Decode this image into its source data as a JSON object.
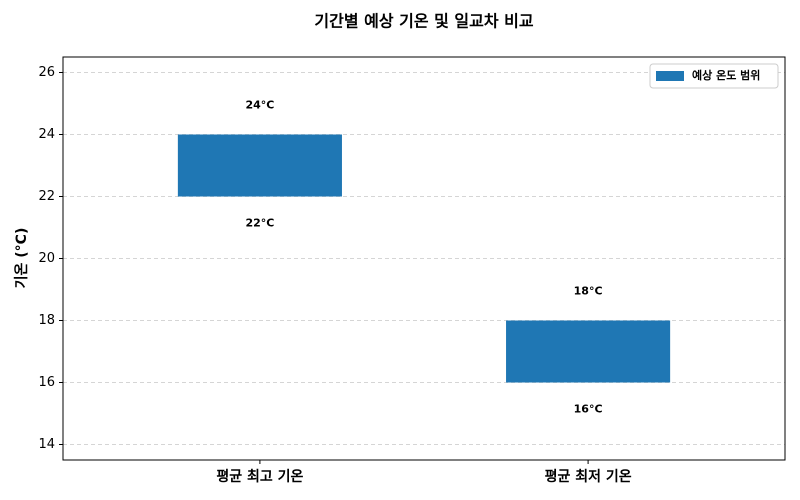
{
  "chart_data": {
    "type": "floating-bar",
    "title": "기간별 예상 기온 및 일교차 비교",
    "y_label": "기온 (°C)",
    "categories": [
      "평균 최고 기온",
      "평균 최저 기온"
    ],
    "series": [
      {
        "name": "예상 온도 범위",
        "color": "#1f77b4",
        "low": [
          22,
          16
        ],
        "low_labels": [
          "22°C",
          "16°C"
        ],
        "high": [
          24,
          18
        ],
        "high_labels": [
          "24°C",
          "18°C"
        ]
      }
    ],
    "ylim": [
      13.5,
      26.5
    ],
    "yticks": [
      14,
      16,
      18,
      20,
      22,
      24,
      26
    ],
    "grid": true,
    "legend": "upper right"
  }
}
